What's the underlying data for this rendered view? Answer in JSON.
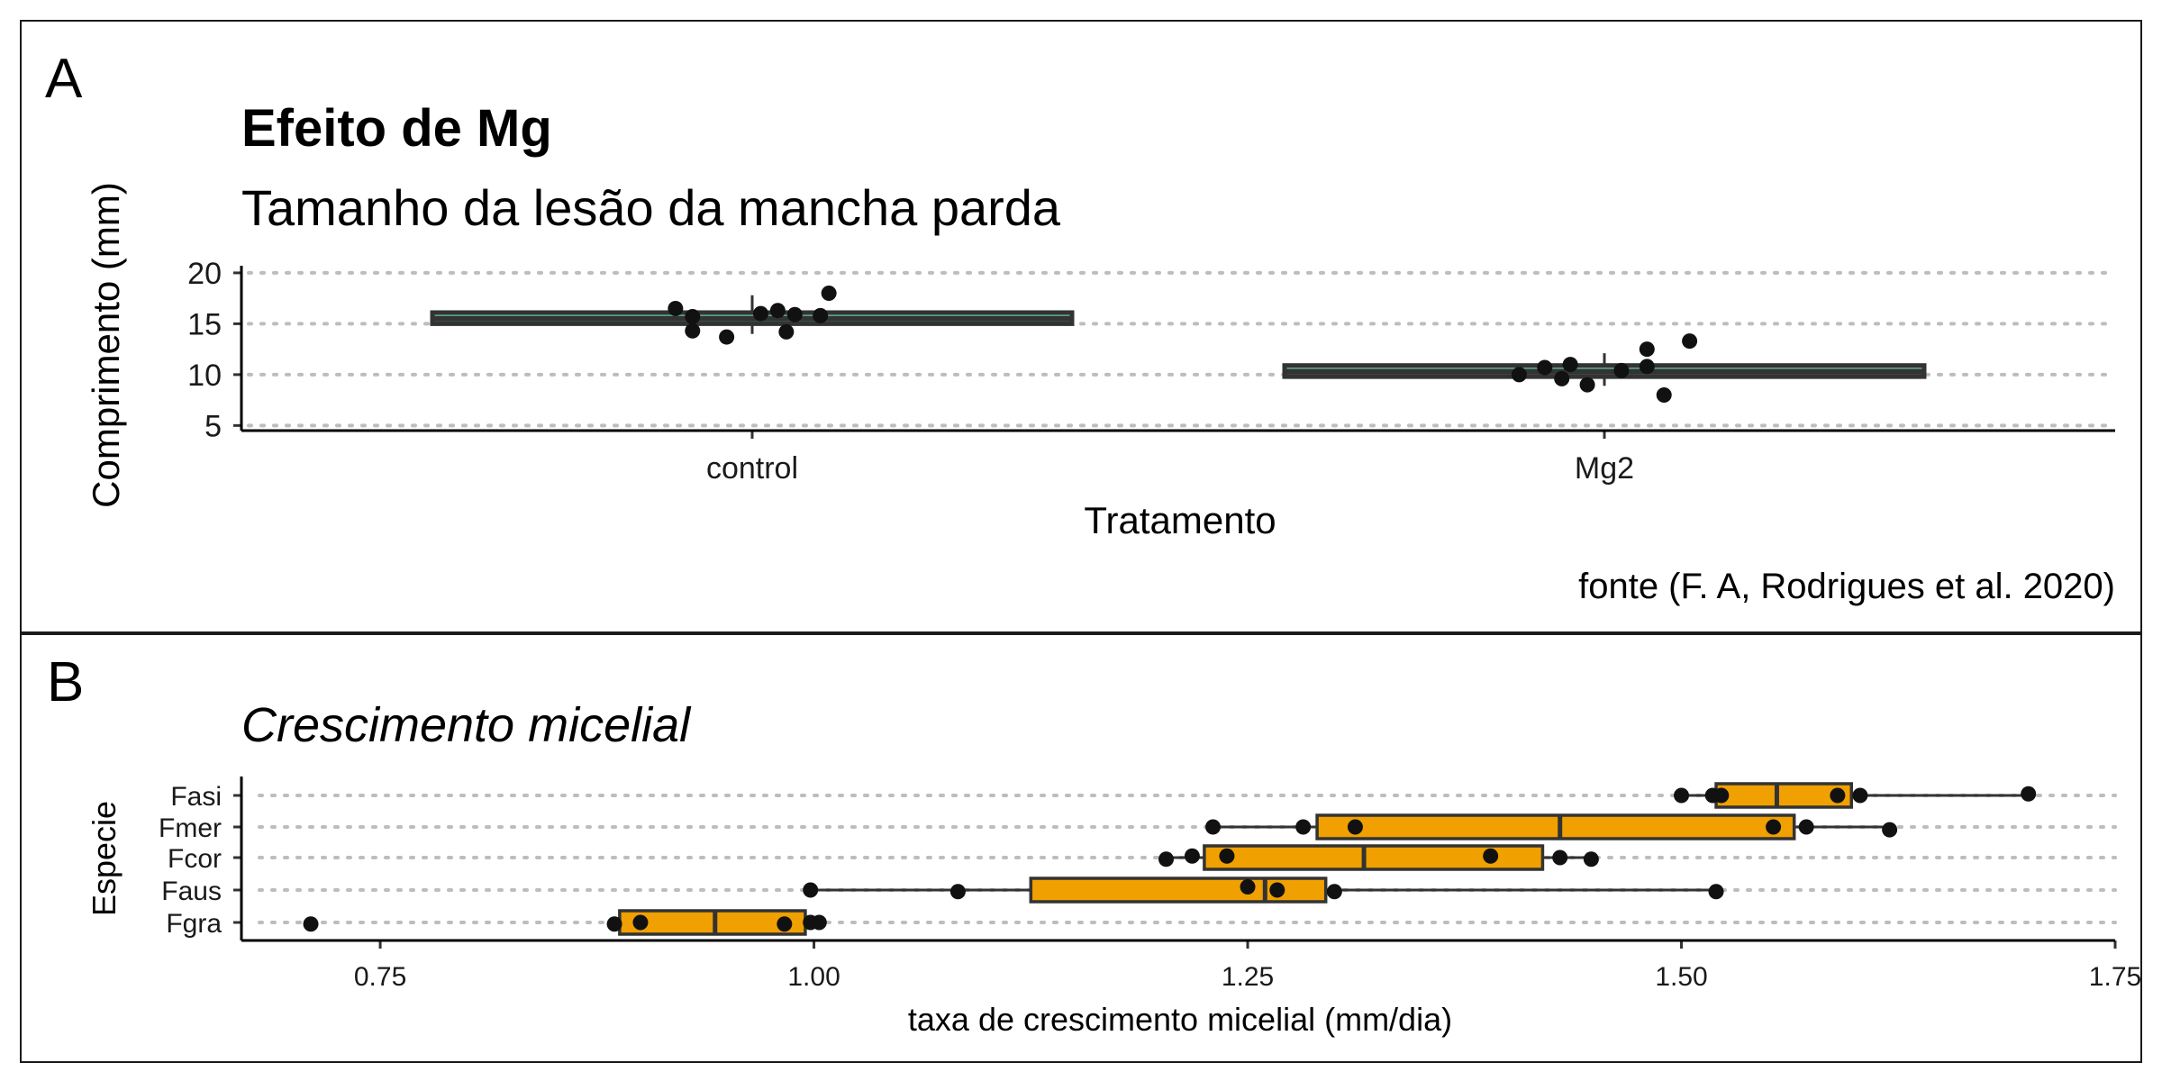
{
  "chart_data": [
    {
      "type": "box",
      "panel_label": "A",
      "title": "Efeito de Mg",
      "subtitle": "Tamanho da lesão da mancha parda",
      "caption": "fonte (F. A, Rodrigues et al. 2020)",
      "xlabel": "Tratamento",
      "ylabel": "Comprimento (mm)",
      "orientation": "vertical",
      "categories": [
        "control",
        "Mg2"
      ],
      "ylim": [
        4.5,
        20.7
      ],
      "yticks": [
        "5",
        "10",
        "15",
        "20"
      ],
      "ytick_values": [
        5,
        10,
        15,
        20
      ],
      "grid": "dotted major y",
      "box_color": "#66C2A5",
      "boxes": [
        {
          "category": "control",
          "q1": 15.0,
          "median": 15.5,
          "q3": 16.1,
          "whisker_low": 14.0,
          "whisker_high": 17.8
        },
        {
          "category": "Mg2",
          "q1": 9.8,
          "median": 10.3,
          "q3": 10.9,
          "whisker_low": 8.9,
          "whisker_high": 12.1
        }
      ],
      "points": [
        {
          "category": "control",
          "jitter": -0.09,
          "y": 16.5
        },
        {
          "category": "control",
          "jitter": -0.07,
          "y": 15.7
        },
        {
          "category": "control",
          "jitter": -0.07,
          "y": 14.3
        },
        {
          "category": "control",
          "jitter": -0.03,
          "y": 13.7
        },
        {
          "category": "control",
          "jitter": 0.01,
          "y": 16.0
        },
        {
          "category": "control",
          "jitter": 0.03,
          "y": 16.3
        },
        {
          "category": "control",
          "jitter": 0.04,
          "y": 14.2
        },
        {
          "category": "control",
          "jitter": 0.05,
          "y": 15.9
        },
        {
          "category": "control",
          "jitter": 0.08,
          "y": 15.8
        },
        {
          "category": "control",
          "jitter": 0.09,
          "y": 18.0
        },
        {
          "category": "Mg2",
          "jitter": -0.1,
          "y": 10.0
        },
        {
          "category": "Mg2",
          "jitter": -0.07,
          "y": 10.7
        },
        {
          "category": "Mg2",
          "jitter": -0.05,
          "y": 9.6
        },
        {
          "category": "Mg2",
          "jitter": -0.04,
          "y": 11.0
        },
        {
          "category": "Mg2",
          "jitter": -0.02,
          "y": 9.0
        },
        {
          "category": "Mg2",
          "jitter": 0.02,
          "y": 10.4
        },
        {
          "category": "Mg2",
          "jitter": 0.05,
          "y": 10.8
        },
        {
          "category": "Mg2",
          "jitter": 0.05,
          "y": 12.5
        },
        {
          "category": "Mg2",
          "jitter": 0.07,
          "y": 8.0
        },
        {
          "category": "Mg2",
          "jitter": 0.1,
          "y": 13.3
        }
      ]
    },
    {
      "type": "box",
      "panel_label": "B",
      "subtitle": "Crescimento micelial",
      "xlabel": "taxa de crescimento micelial (mm/dia)",
      "ylabel": "Especie",
      "orientation": "horizontal",
      "categories": [
        "Fasi",
        "Fmer",
        "Fcor",
        "Faus",
        "Fgra"
      ],
      "xlim": [
        0.67,
        1.75
      ],
      "xticks": [
        "0.75",
        "1.00",
        "1.25",
        "1.50",
        "1.75"
      ],
      "xtick_values": [
        0.75,
        1.0,
        1.25,
        1.5,
        1.75
      ],
      "grid": "dotted major y",
      "box_color": "#F0A000",
      "boxes": [
        {
          "category": "Fasi",
          "whisker_low": 1.5,
          "q1": 1.52,
          "median": 1.555,
          "q3": 1.598,
          "whisker_high": 1.7
        },
        {
          "category": "Fmer",
          "whisker_low": 1.23,
          "q1": 1.29,
          "median": 1.43,
          "q3": 1.565,
          "whisker_high": 1.62
        },
        {
          "category": "Fcor",
          "whisker_low": 1.205,
          "q1": 1.225,
          "median": 1.317,
          "q3": 1.42,
          "whisker_high": 1.45
        },
        {
          "category": "Faus",
          "whisker_low": 1.0,
          "q1": 1.125,
          "median": 1.26,
          "q3": 1.295,
          "whisker_high": 1.52
        },
        {
          "category": "Fgra",
          "whisker_low": 0.885,
          "q1": 0.888,
          "median": 0.943,
          "q3": 0.995,
          "whisker_high": 1.0
        }
      ],
      "points": [
        {
          "category": "Fasi",
          "x": 1.5,
          "jitter": 0.0
        },
        {
          "category": "Fasi",
          "x": 1.518,
          "jitter": 0.0
        },
        {
          "category": "Fasi",
          "x": 1.523,
          "jitter": 0.0
        },
        {
          "category": "Fasi",
          "x": 1.59,
          "jitter": 0.0
        },
        {
          "category": "Fasi",
          "x": 1.603,
          "jitter": 0.0
        },
        {
          "category": "Fasi",
          "x": 1.7,
          "jitter": -0.05
        },
        {
          "category": "Fmer",
          "x": 1.23,
          "jitter": 0.0
        },
        {
          "category": "Fmer",
          "x": 1.282,
          "jitter": 0.0
        },
        {
          "category": "Fmer",
          "x": 1.312,
          "jitter": 0.0
        },
        {
          "category": "Fmer",
          "x": 1.553,
          "jitter": 0.0
        },
        {
          "category": "Fmer",
          "x": 1.572,
          "jitter": 0.0
        },
        {
          "category": "Fmer",
          "x": 1.62,
          "jitter": 0.09
        },
        {
          "category": "Fcor",
          "x": 1.203,
          "jitter": 0.05
        },
        {
          "category": "Fcor",
          "x": 1.218,
          "jitter": -0.05
        },
        {
          "category": "Fcor",
          "x": 1.238,
          "jitter": -0.05
        },
        {
          "category": "Fcor",
          "x": 1.39,
          "jitter": -0.05
        },
        {
          "category": "Fcor",
          "x": 1.43,
          "jitter": 0.0
        },
        {
          "category": "Fcor",
          "x": 1.448,
          "jitter": 0.05
        },
        {
          "category": "Faus",
          "x": 0.998,
          "jitter": 0.0
        },
        {
          "category": "Faus",
          "x": 1.083,
          "jitter": 0.05
        },
        {
          "category": "Faus",
          "x": 1.25,
          "jitter": -0.1
        },
        {
          "category": "Faus",
          "x": 1.267,
          "jitter": 0.0
        },
        {
          "category": "Faus",
          "x": 1.3,
          "jitter": 0.05
        },
        {
          "category": "Faus",
          "x": 1.52,
          "jitter": 0.05
        },
        {
          "category": "Fgra",
          "x": 0.71,
          "jitter": 0.05
        },
        {
          "category": "Fgra",
          "x": 0.885,
          "jitter": 0.05
        },
        {
          "category": "Fgra",
          "x": 0.9,
          "jitter": 0.0
        },
        {
          "category": "Fgra",
          "x": 0.983,
          "jitter": 0.05
        },
        {
          "category": "Fgra",
          "x": 0.998,
          "jitter": 0.0
        },
        {
          "category": "Fgra",
          "x": 1.003,
          "jitter": 0.0
        }
      ]
    }
  ]
}
